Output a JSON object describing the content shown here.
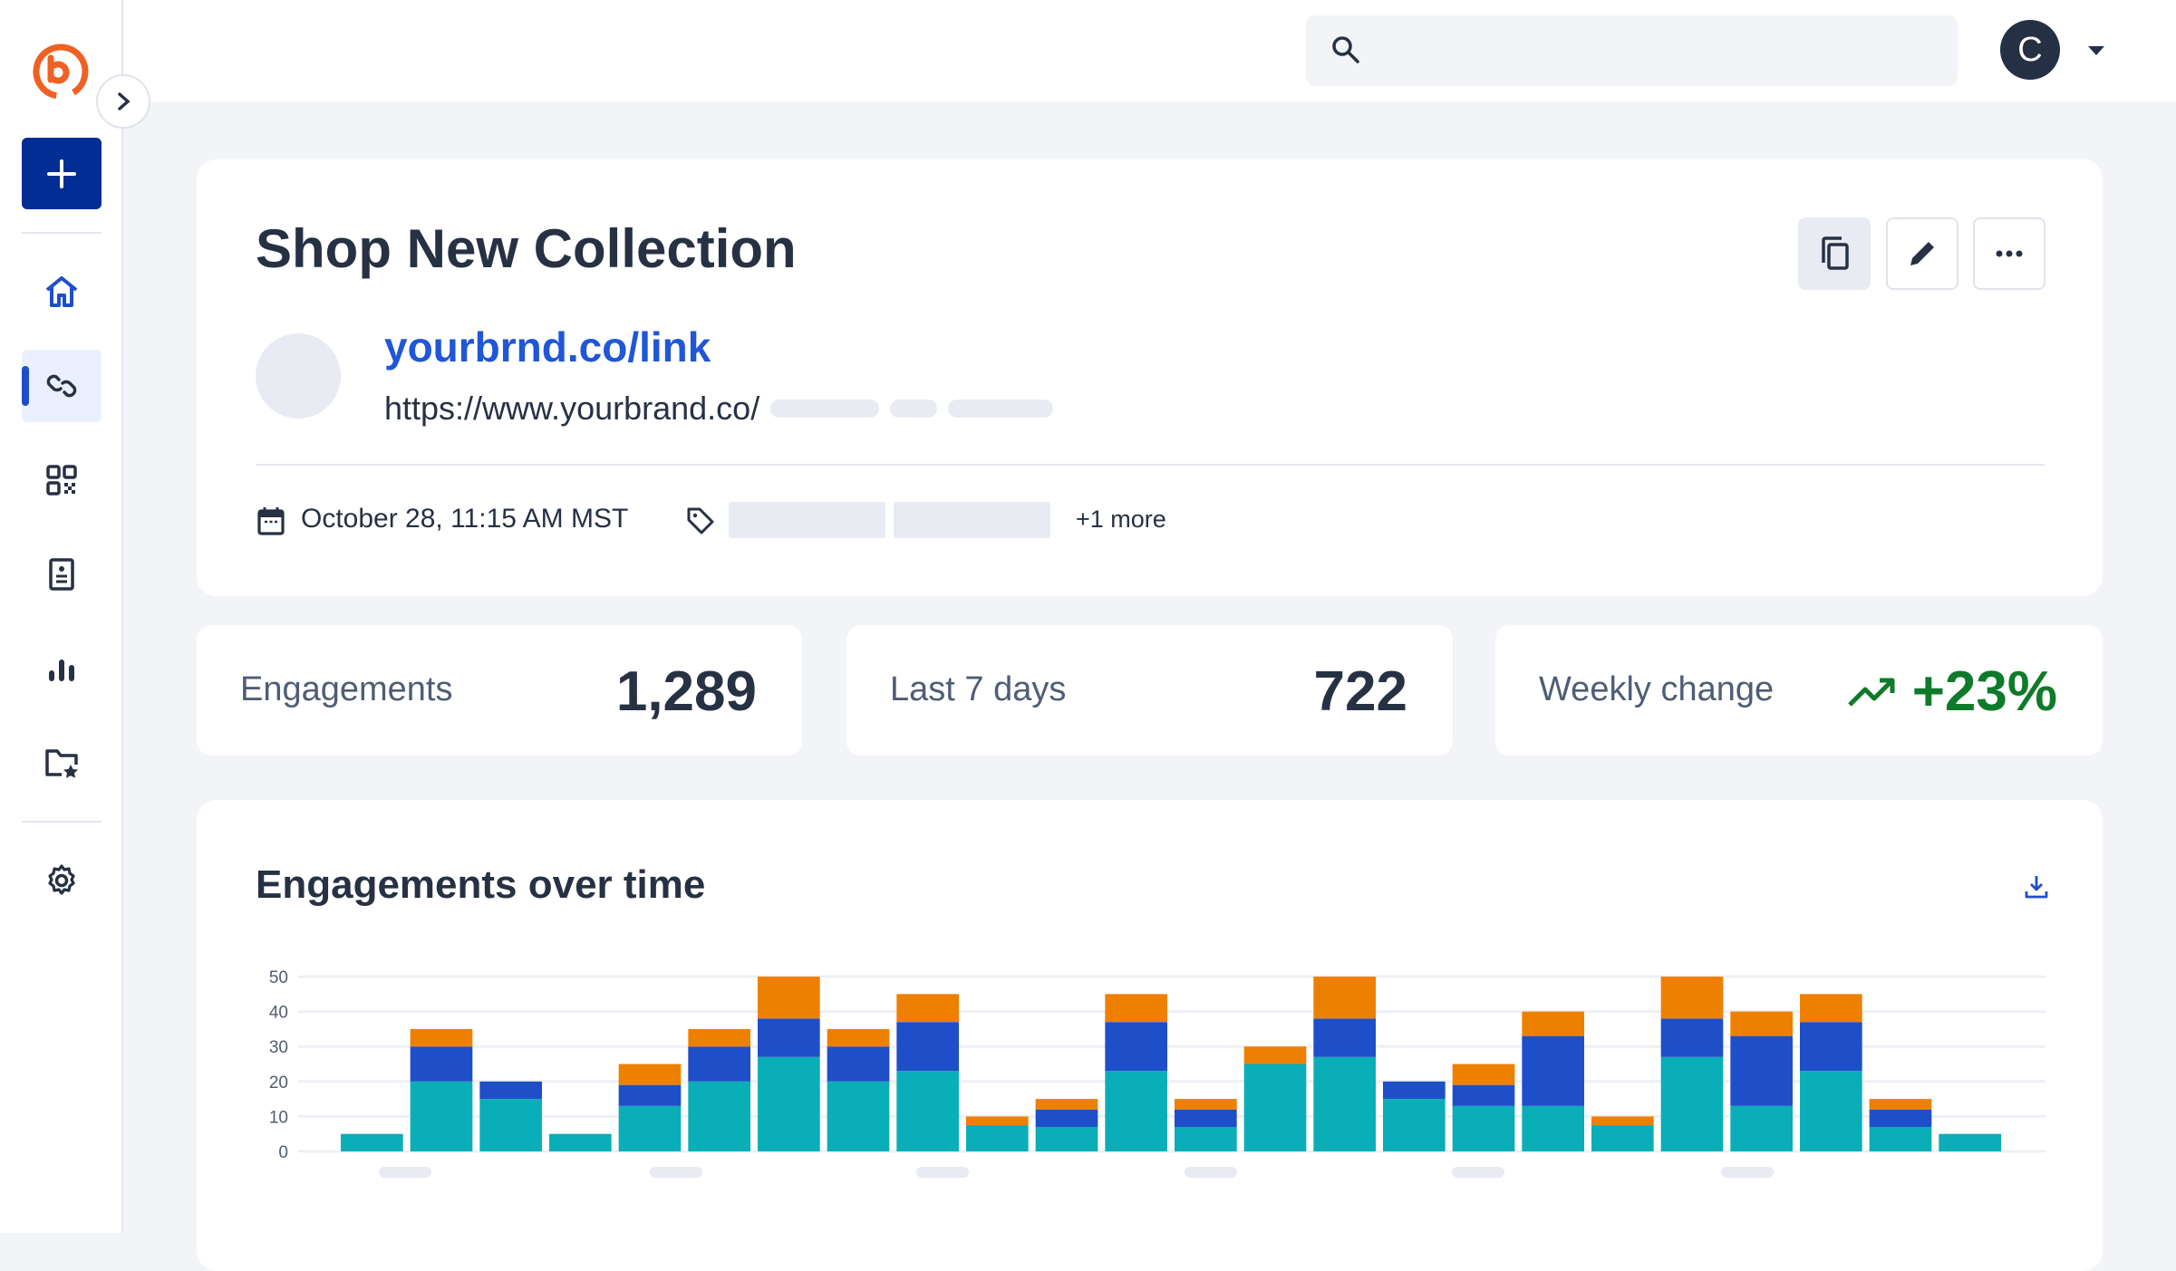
{
  "sidebar": {
    "items": [
      {
        "name": "home",
        "icon": "home-icon"
      },
      {
        "name": "links",
        "icon": "link-icon",
        "active": true
      },
      {
        "name": "qr-codes",
        "icon": "qr-code-icon"
      },
      {
        "name": "pages",
        "icon": "page-icon"
      },
      {
        "name": "analytics",
        "icon": "bar-chart-icon"
      },
      {
        "name": "campaigns",
        "icon": "folder-star-icon"
      }
    ],
    "settings_icon": "gear-icon",
    "create_icon": "plus-icon",
    "brand_color": "#ee6123"
  },
  "header": {
    "search_placeholder": "",
    "avatar_initial": "C"
  },
  "link": {
    "title": "Shop New Collection",
    "short_url": "yourbrnd.co/link",
    "long_url": "https://www.yourbrand.co/",
    "date": "October 28, 11:15 AM MST",
    "tags_more": "+1 more"
  },
  "stats": [
    {
      "label": "Engagements",
      "value": "1,289"
    },
    {
      "label": "Last 7 days",
      "value": "722"
    },
    {
      "label": "Weekly change",
      "value": "+23%",
      "color": "#0f7a2a"
    }
  ],
  "chart_data": {
    "type": "bar",
    "stacked": true,
    "title": "Engagements over time",
    "ylim": [
      0,
      50
    ],
    "yticks": [
      0,
      10,
      20,
      30,
      40,
      50
    ],
    "grid": true,
    "colors": [
      "#0aaeb8",
      "#1e4fc8",
      "#ee8000"
    ],
    "series": [
      {
        "values": [
          5,
          20,
          15,
          5,
          13,
          20,
          27,
          20,
          23,
          7.5,
          7,
          23,
          7,
          25,
          27,
          15,
          13,
          13,
          7.5,
          27,
          13,
          23,
          7,
          5
        ]
      },
      {
        "values": [
          0,
          10,
          5,
          0,
          6,
          10,
          11,
          10,
          14,
          0,
          5,
          14,
          5,
          0,
          11,
          5,
          6,
          20,
          0,
          11,
          20,
          14,
          5,
          0
        ]
      },
      {
        "values": [
          0,
          5,
          0,
          0,
          6,
          5,
          12,
          5,
          8,
          2.5,
          3,
          8,
          3,
          5,
          12,
          0,
          6,
          7,
          2.5,
          12,
          7,
          8,
          3,
          0
        ]
      }
    ]
  }
}
